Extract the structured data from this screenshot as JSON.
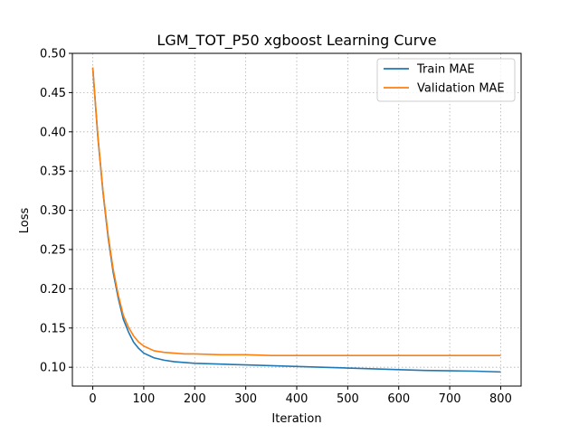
{
  "chart_data": {
    "type": "line",
    "title": "LGM_TOT_P50 xgboost Learning Curve",
    "xlabel": "Iteration",
    "ylabel": "Loss",
    "xlim": [
      -40,
      840
    ],
    "ylim": [
      0.076,
      0.5
    ],
    "xticks": [
      0,
      100,
      200,
      300,
      400,
      500,
      600,
      700,
      800
    ],
    "yticks": [
      0.1,
      0.15,
      0.2,
      0.25,
      0.3,
      0.35,
      0.4,
      0.45,
      0.5
    ],
    "ytick_labels": [
      "0.10",
      "0.15",
      "0.20",
      "0.25",
      "0.30",
      "0.35",
      "0.40",
      "0.45",
      "0.50"
    ],
    "grid": true,
    "legend_position": "top-right",
    "series": [
      {
        "name": "Train MAE",
        "color": "#1f77b4",
        "x": [
          0,
          10,
          20,
          30,
          40,
          50,
          60,
          70,
          80,
          90,
          100,
          120,
          140,
          160,
          180,
          200,
          250,
          300,
          350,
          400,
          450,
          500,
          550,
          600,
          650,
          700,
          750,
          800
        ],
        "y": [
          0.481,
          0.393,
          0.323,
          0.266,
          0.221,
          0.188,
          0.161,
          0.145,
          0.132,
          0.124,
          0.118,
          0.112,
          0.109,
          0.107,
          0.106,
          0.105,
          0.104,
          0.103,
          0.102,
          0.101,
          0.1,
          0.099,
          0.098,
          0.097,
          0.096,
          0.0955,
          0.095,
          0.094
        ]
      },
      {
        "name": "Validation MAE",
        "color": "#ff7f0e",
        "x": [
          0,
          10,
          20,
          30,
          40,
          50,
          60,
          70,
          80,
          90,
          100,
          120,
          140,
          160,
          180,
          200,
          250,
          300,
          350,
          400,
          450,
          500,
          550,
          600,
          650,
          700,
          750,
          800
        ],
        "y": [
          0.482,
          0.395,
          0.325,
          0.269,
          0.225,
          0.192,
          0.166,
          0.151,
          0.14,
          0.132,
          0.127,
          0.121,
          0.119,
          0.118,
          0.117,
          0.117,
          0.116,
          0.116,
          0.115,
          0.115,
          0.115,
          0.115,
          0.115,
          0.115,
          0.115,
          0.115,
          0.115,
          0.115
        ]
      }
    ]
  }
}
